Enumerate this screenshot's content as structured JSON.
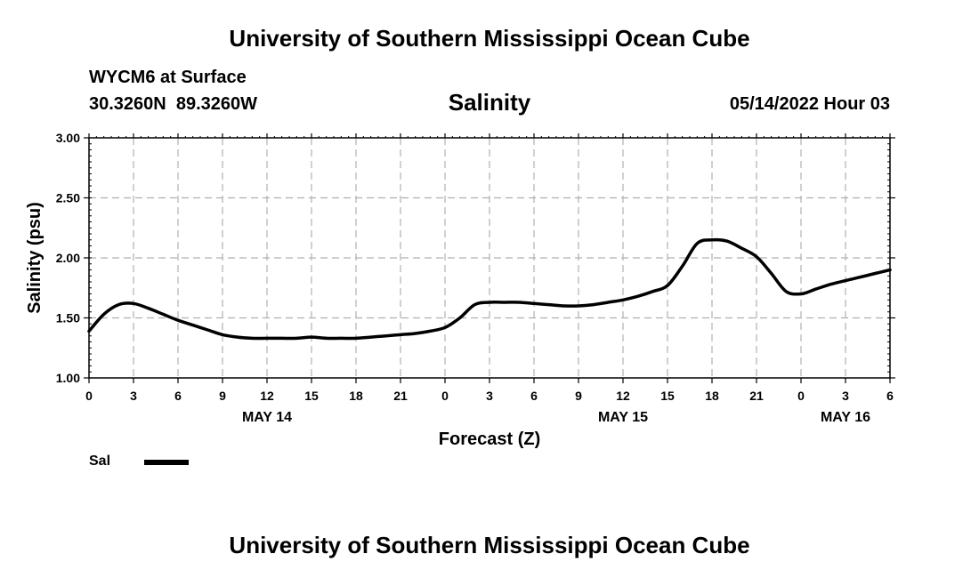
{
  "header": {
    "title_top": "University of Southern Mississippi Ocean Cube",
    "station": "WYCM6 at Surface",
    "coords": "30.3260N  89.3260W",
    "chart_title": "Salinity",
    "datetime": "05/14/2022 Hour 03",
    "title_bottom": "University of Southern Mississippi Ocean Cube"
  },
  "legend": {
    "label": "Sal"
  },
  "chart_data": {
    "type": "line",
    "title": "Salinity",
    "xlabel": "Forecast (Z)",
    "ylabel": "Salinity (psu)",
    "ylim": [
      1.0,
      3.0
    ],
    "xlim": [
      0,
      54
    ],
    "yticks": [
      "1.00",
      "1.50",
      "2.00",
      "2.50",
      "3.00"
    ],
    "ytick_values": [
      1.0,
      1.5,
      2.0,
      2.5,
      3.0
    ],
    "xtick_labels": [
      "0",
      "3",
      "6",
      "9",
      "12",
      "15",
      "18",
      "21",
      "0",
      "3",
      "6",
      "9",
      "12",
      "15",
      "18",
      "21",
      "0",
      "3",
      "6"
    ],
    "day_labels": [
      {
        "label": "MAY 14",
        "hour": 12
      },
      {
        "label": "MAY 15",
        "hour": 36
      },
      {
        "label": "MAY 16",
        "hour": 51
      }
    ],
    "grid": true,
    "series": [
      {
        "name": "Sal",
        "x": [
          0,
          1,
          2,
          3,
          4,
          5,
          6,
          7,
          8,
          9,
          10,
          11,
          12,
          13,
          14,
          15,
          16,
          17,
          18,
          19,
          20,
          21,
          22,
          23,
          24,
          25,
          26,
          27,
          28,
          29,
          30,
          31,
          32,
          33,
          34,
          35,
          36,
          37,
          38,
          39,
          40,
          41,
          42,
          43,
          44,
          45,
          46,
          47,
          48,
          49,
          50,
          51,
          52,
          53,
          54
        ],
        "values": [
          1.39,
          1.53,
          1.61,
          1.62,
          1.58,
          1.53,
          1.48,
          1.44,
          1.4,
          1.36,
          1.34,
          1.33,
          1.33,
          1.33,
          1.33,
          1.34,
          1.33,
          1.33,
          1.33,
          1.34,
          1.35,
          1.36,
          1.37,
          1.39,
          1.42,
          1.5,
          1.61,
          1.63,
          1.63,
          1.63,
          1.62,
          1.61,
          1.6,
          1.6,
          1.61,
          1.63,
          1.65,
          1.68,
          1.72,
          1.77,
          1.93,
          2.12,
          2.15,
          2.14,
          2.08,
          2.01,
          1.87,
          1.72,
          1.7,
          1.74,
          1.78,
          1.81,
          1.84,
          1.87,
          1.9
        ]
      }
    ]
  }
}
